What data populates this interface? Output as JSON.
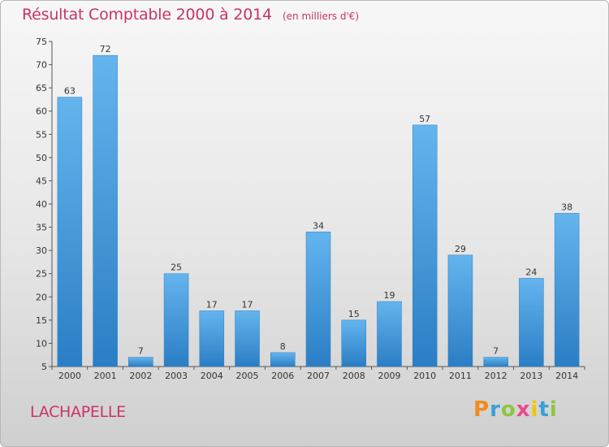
{
  "chart_data": {
    "type": "bar",
    "title": "Résultat Comptable 2000 à 2014",
    "subtitle": "(en milliers d'€)",
    "categories": [
      "2000",
      "2001",
      "2002",
      "2003",
      "2004",
      "2005",
      "2006",
      "2007",
      "2008",
      "2009",
      "2010",
      "2011",
      "2012",
      "2013",
      "2014"
    ],
    "values": [
      63,
      72,
      7,
      25,
      17,
      17,
      8,
      34,
      15,
      19,
      57,
      29,
      7,
      24,
      38
    ],
    "ylim": [
      5,
      75
    ],
    "yticks": [
      5,
      10,
      15,
      20,
      25,
      30,
      35,
      40,
      45,
      50,
      55,
      60,
      65,
      70,
      75
    ],
    "grid": false,
    "bar_color": "#4a9ee0",
    "bar_color_light": "#64b4ee",
    "bar_color_dark": "#2b7ec4"
  },
  "location": "LACHAPELLE",
  "logo": {
    "text": "Proxiti",
    "letters": [
      {
        "char": "P",
        "color": "#f08a1c"
      },
      {
        "char": "r",
        "color": "#3aa0d8"
      },
      {
        "char": "o",
        "color": "#8dc63f"
      },
      {
        "char": "x",
        "color": "#e94b8a"
      },
      {
        "char": "i",
        "color": "#f5c400"
      },
      {
        "char": "t",
        "color": "#3aa0d8"
      },
      {
        "char": "i",
        "color": "#8dc63f"
      }
    ]
  }
}
